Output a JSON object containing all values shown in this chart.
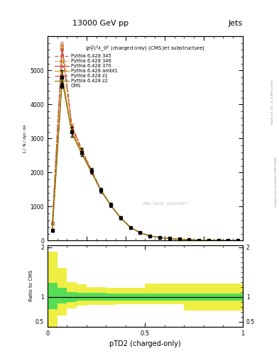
{
  "title_top": "13000 GeV pp",
  "title_right": "Jets",
  "plot_title": "$(p_T^D)^2\\lambda\\_0^2$ (charged only) (CMS jet substructure)",
  "xlabel": "pTD2 (charged-only)",
  "ylabel_main": "1 / mathrmd N / mathrmd p_T mathrmd lambda",
  "ylabel_ratio": "Ratio to CMS",
  "watermark": "CMS_2021_I1920187",
  "x_bins": [
    0.0,
    0.05,
    0.1,
    0.15,
    0.2,
    0.25,
    0.3,
    0.35,
    0.4,
    0.45,
    0.5,
    0.55,
    0.6,
    0.65,
    0.7,
    0.75,
    0.8,
    0.85,
    0.9,
    0.95,
    1.0
  ],
  "cms_data_y": [
    300,
    4800,
    3200,
    2600,
    2050,
    1480,
    1050,
    680,
    390,
    235,
    140,
    92,
    62,
    42,
    26,
    16,
    11,
    7,
    4,
    2
  ],
  "cms_data_yerr": [
    40,
    200,
    150,
    120,
    90,
    70,
    55,
    38,
    25,
    18,
    12,
    9,
    6,
    4,
    3,
    2,
    2,
    1,
    1,
    0.5
  ],
  "py345_y": [
    520,
    5800,
    3400,
    2700,
    2080,
    1490,
    1040,
    670,
    390,
    235,
    140,
    91,
    62,
    42,
    26,
    16,
    11,
    7,
    4,
    2
  ],
  "py346_y": [
    510,
    5700,
    3350,
    2680,
    2060,
    1480,
    1035,
    665,
    387,
    233,
    138,
    90,
    61,
    41,
    25,
    16,
    11,
    7,
    4,
    2
  ],
  "py370_y": [
    310,
    4700,
    3200,
    2580,
    2020,
    1460,
    1030,
    665,
    388,
    234,
    139,
    91,
    62,
    42,
    26,
    16,
    11,
    7,
    4,
    2
  ],
  "pyambt1_y": [
    340,
    4900,
    3220,
    2600,
    2030,
    1465,
    1035,
    668,
    390,
    236,
    140,
    92,
    63,
    43,
    27,
    17,
    11,
    7,
    4,
    2
  ],
  "pyz1_y": [
    510,
    5600,
    3320,
    2640,
    2040,
    1470,
    1032,
    665,
    388,
    234,
    139,
    91,
    62,
    42,
    26,
    16,
    11,
    7,
    4,
    2
  ],
  "pyz2_y": [
    330,
    4750,
    3150,
    2560,
    2010,
    1455,
    1028,
    663,
    387,
    233,
    138,
    90,
    61,
    41,
    25,
    16,
    11,
    7,
    4,
    2
  ],
  "ratio_x_bins": [
    0.0,
    0.05,
    0.1,
    0.15,
    0.2,
    0.25,
    0.3,
    0.35,
    0.4,
    0.45,
    0.5,
    0.55,
    0.6,
    0.65,
    0.7,
    0.75,
    0.8,
    0.85,
    0.9,
    0.95,
    1.0
  ],
  "green_band_lo": [
    0.75,
    0.87,
    0.9,
    0.92,
    0.93,
    0.93,
    0.93,
    0.93,
    0.93,
    0.93,
    0.93,
    0.93,
    0.93,
    0.93,
    0.93,
    0.93,
    0.93,
    0.93,
    0.93,
    0.93
  ],
  "green_band_hi": [
    1.28,
    1.18,
    1.1,
    1.09,
    1.08,
    1.08,
    1.07,
    1.07,
    1.07,
    1.07,
    1.07,
    1.07,
    1.07,
    1.07,
    1.07,
    1.07,
    1.07,
    1.07,
    1.07,
    1.07
  ],
  "yellow_band_lo": [
    0.38,
    0.62,
    0.77,
    0.82,
    0.84,
    0.84,
    0.84,
    0.85,
    0.85,
    0.85,
    0.85,
    0.85,
    0.85,
    0.85,
    0.72,
    0.72,
    0.72,
    0.72,
    0.72,
    0.72
  ],
  "yellow_band_hi": [
    1.92,
    1.58,
    1.3,
    1.25,
    1.2,
    1.2,
    1.19,
    1.18,
    1.18,
    1.18,
    1.27,
    1.27,
    1.27,
    1.27,
    1.27,
    1.27,
    1.27,
    1.27,
    1.27,
    1.27
  ],
  "colors": {
    "cms": "#000000",
    "py345": "#d45050",
    "py346": "#b89000",
    "py370": "#c84040",
    "pyambt1": "#d4a000",
    "pyz1": "#c84040",
    "pyz2": "#808010",
    "green_band": "#55dd55",
    "yellow_band": "#eeee44"
  },
  "ylim_main": [
    0,
    6000
  ],
  "ylim_ratio": [
    0.4,
    2.05
  ],
  "xlim": [
    0.0,
    1.0
  ],
  "yticks_main": [
    0,
    1000,
    2000,
    3000,
    4000,
    5000
  ],
  "yticks_ratio": [
    0.5,
    1.0,
    2.0
  ],
  "xticks_ratio": [
    0.0,
    0.5,
    1.0
  ]
}
